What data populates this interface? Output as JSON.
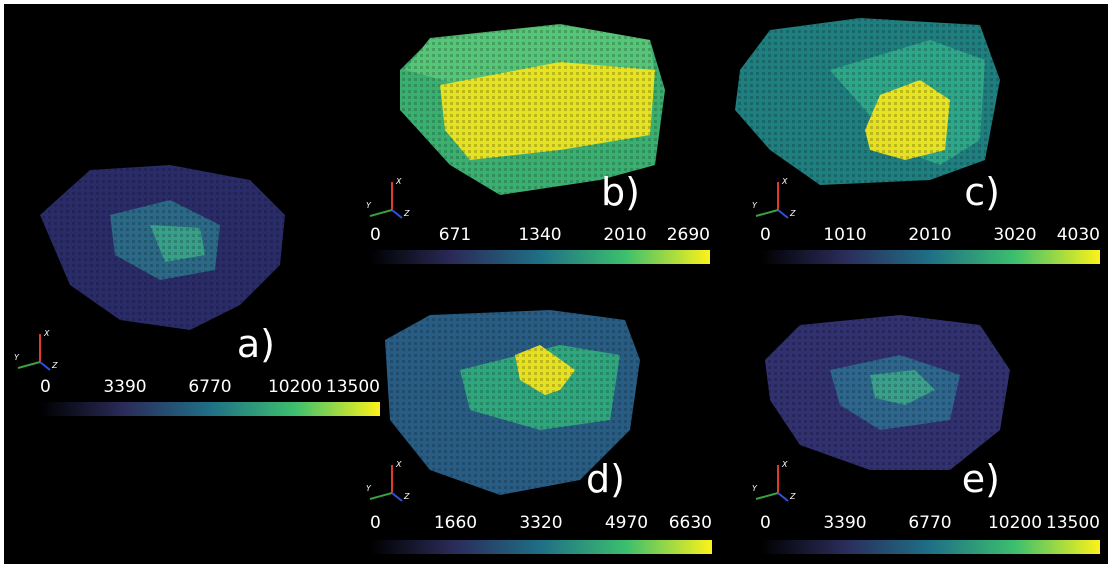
{
  "axis_labels": [
    "X",
    "Y",
    "Z"
  ],
  "panels": [
    {
      "label": "a)",
      "ticks": [
        0,
        3390,
        6770,
        10200,
        13500
      ]
    },
    {
      "label": "b)",
      "ticks": [
        0,
        671,
        1340,
        2010,
        2690
      ]
    },
    {
      "label": "c)",
      "ticks": [
        0,
        1010,
        2010,
        3020,
        4030
      ]
    },
    {
      "label": "d)",
      "ticks": [
        0,
        1660,
        3320,
        4970,
        6630
      ]
    },
    {
      "label": "e)",
      "ticks": [
        0,
        3390,
        6770,
        10200,
        13500
      ]
    }
  ]
}
